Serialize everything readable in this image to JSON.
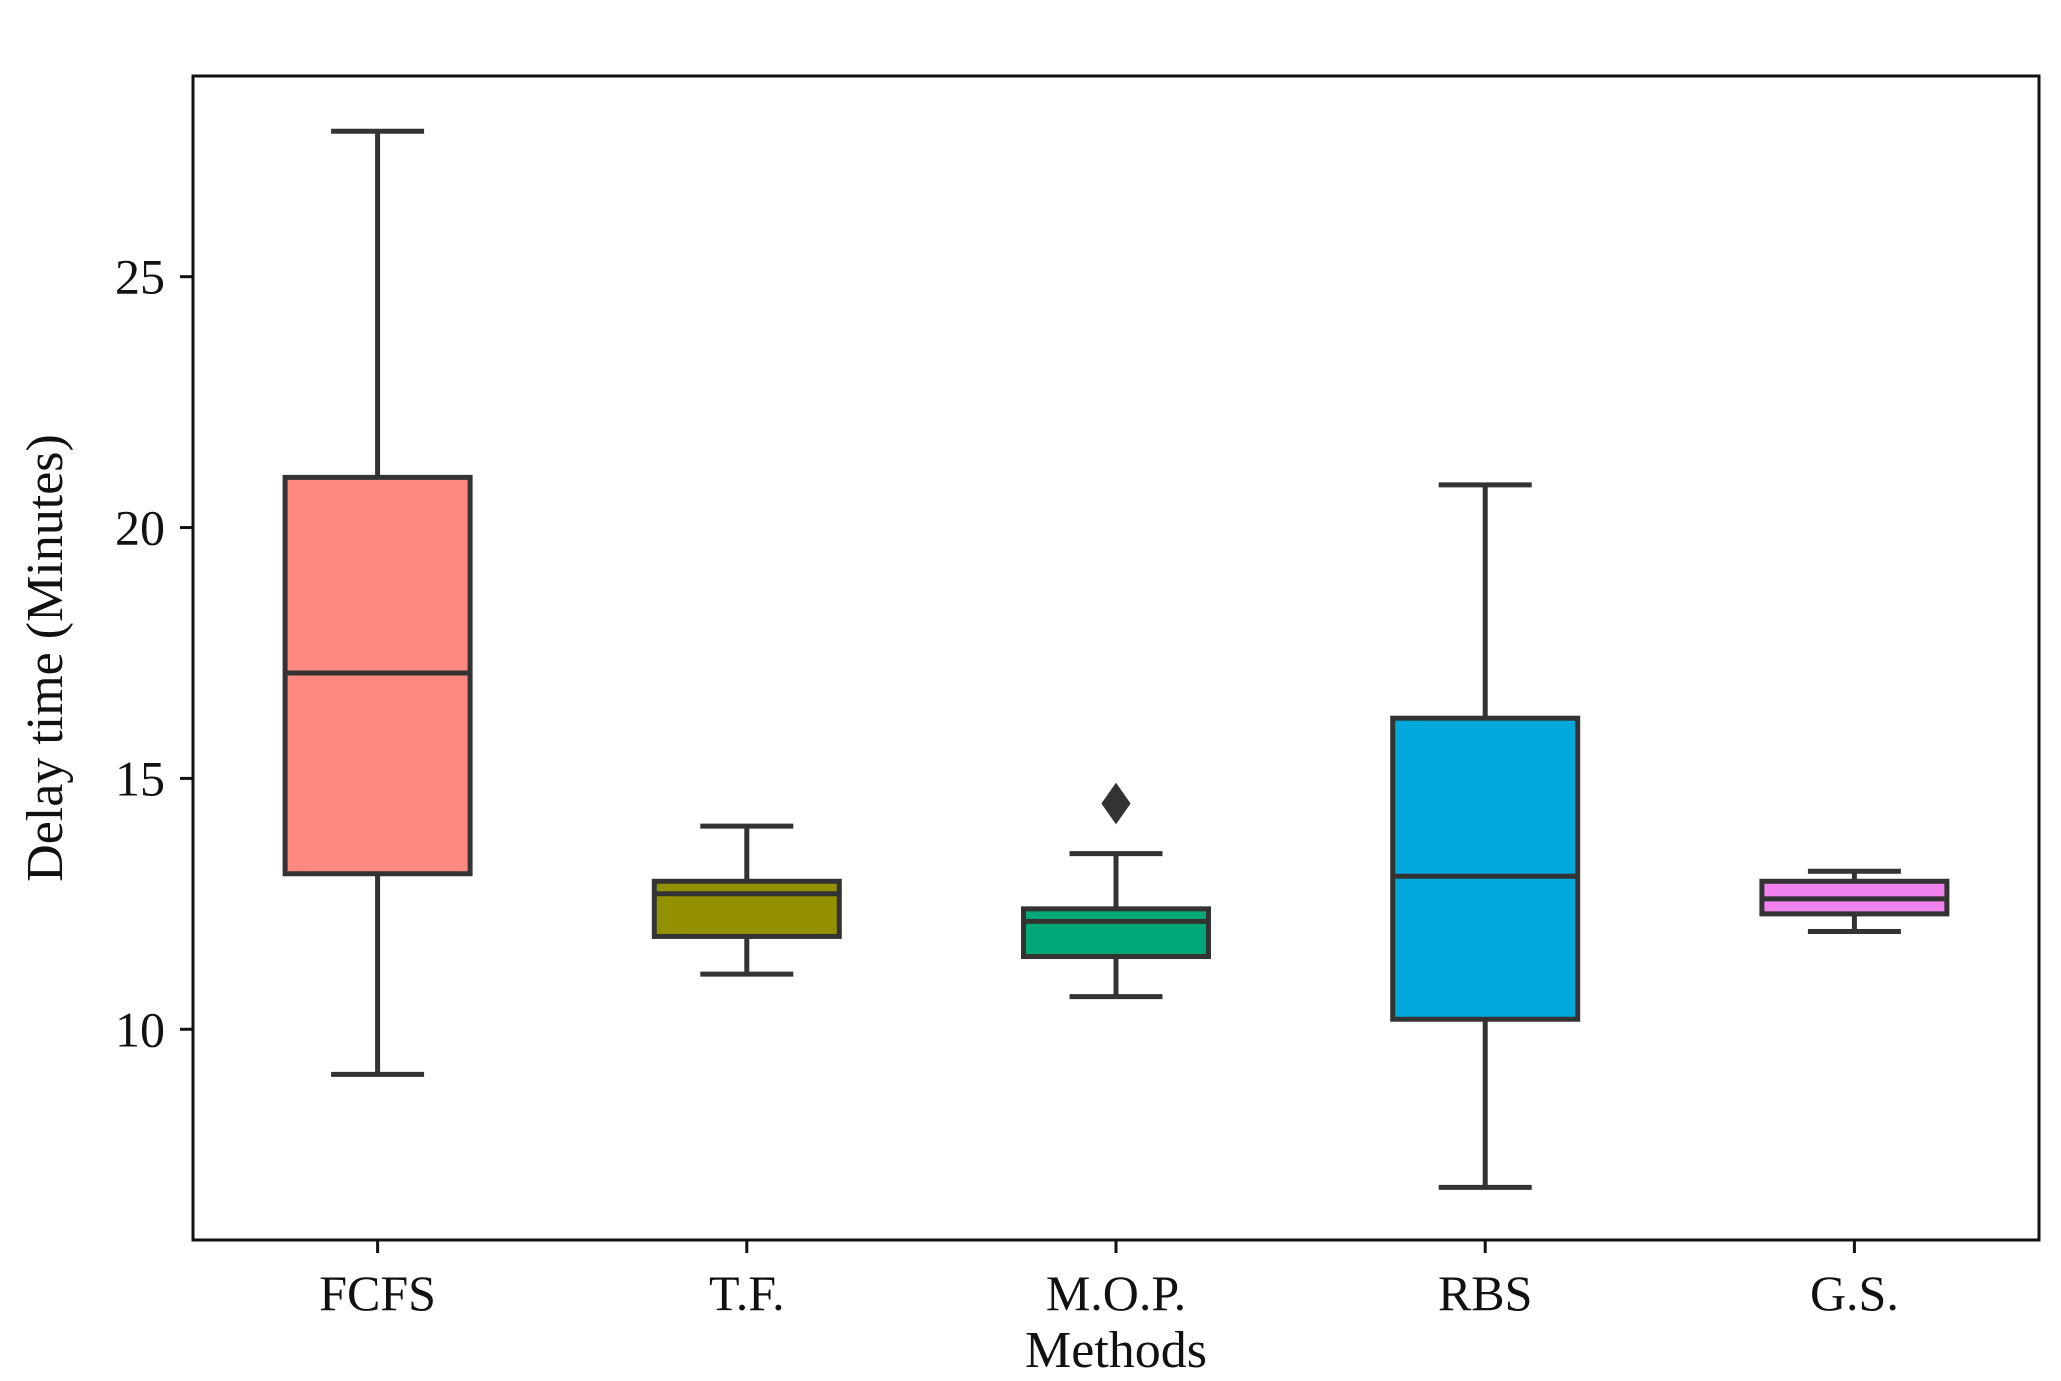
{
  "chart_data": {
    "type": "box",
    "title": "",
    "xlabel": "Methods",
    "ylabel": "Delay time (Minutes)",
    "ylim": [
      5.8,
      29.0
    ],
    "yticks": [
      10,
      15,
      20,
      25
    ],
    "ytick_labels": [
      "10",
      "15",
      "20",
      "25"
    ],
    "grid": false,
    "categories": [
      "FCFS",
      "T.F.",
      "M.O.P.",
      "RBS",
      "G.S."
    ],
    "boxes": [
      {
        "name": "FCFS",
        "whisker_low": 9.1,
        "q1": 13.1,
        "median": 17.1,
        "q3": 21.0,
        "whisker_high": 27.9,
        "outliers": [],
        "color": "#FF8880"
      },
      {
        "name": "T.F.",
        "whisker_low": 11.1,
        "q1": 11.85,
        "median": 12.7,
        "q3": 12.95,
        "whisker_high": 14.05,
        "outliers": [],
        "color": "#939100"
      },
      {
        "name": "M.O.P.",
        "whisker_low": 10.65,
        "q1": 11.45,
        "median": 12.15,
        "q3": 12.4,
        "whisker_high": 13.5,
        "outliers": [
          14.5
        ],
        "color": "#00A878"
      },
      {
        "name": "RBS",
        "whisker_low": 6.85,
        "q1": 10.2,
        "median": 13.05,
        "q3": 16.2,
        "whisker_high": 20.85,
        "outliers": [],
        "color": "#00A8DC"
      },
      {
        "name": "G.S.",
        "whisker_low": 11.95,
        "q1": 12.3,
        "median": 12.6,
        "q3": 12.95,
        "whisker_high": 13.15,
        "outliers": [],
        "color": "#F083EE"
      }
    ],
    "line_color": "#333333"
  }
}
